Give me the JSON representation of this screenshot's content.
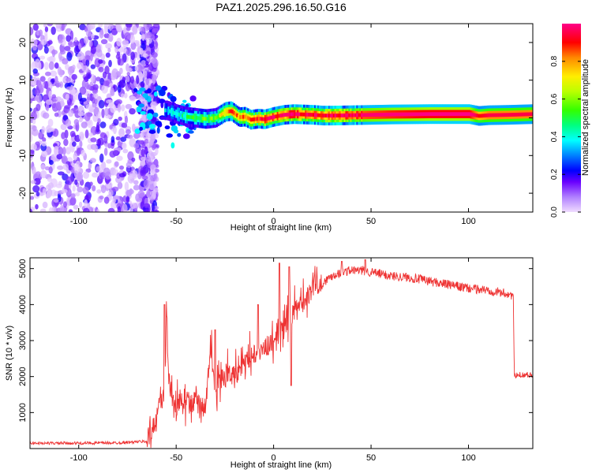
{
  "chart_data": [
    {
      "type": "heatmap",
      "title": "PAZ1.2025.296.16.50.G16",
      "xlabel": "Height of straight line (km)",
      "ylabel": "Frequency (Hz)",
      "xlim": [
        -125,
        133
      ],
      "ylim": [
        -25,
        25
      ],
      "xticks": [
        -100,
        -50,
        0,
        50,
        100
      ],
      "xtick_labels": [
        "-100",
        "-50",
        "0",
        "50",
        "100"
      ],
      "yticks": [
        -20,
        -10,
        0,
        10,
        20
      ],
      "ytick_labels": [
        "-20",
        "-10",
        "0",
        "10",
        "20"
      ],
      "colorbar": {
        "label": "Normalized spectral amplitude",
        "range": [
          0,
          1
        ],
        "ticks": [
          0.0,
          0.2,
          0.4,
          0.6,
          0.8
        ],
        "tick_labels": [
          "0.0",
          "0.2",
          "0.4",
          "0.6",
          "0.8"
        ],
        "colors": [
          "#e6ccff",
          "#9955ff",
          "#5500ff",
          "#0000ff",
          "#00a0ff",
          "#00ffff",
          "#00ff80",
          "#33ff00",
          "#bbff00",
          "#ffee00",
          "#ff8800",
          "#ff0000",
          "#ff0066",
          "#ff0088"
        ]
      },
      "ridge": {
        "x": [
          -55,
          -50,
          -45,
          -40,
          -35,
          -30,
          -25,
          -22,
          -18,
          -15,
          -12,
          -8,
          -5,
          0,
          5,
          10,
          15,
          20,
          25,
          30,
          40,
          50,
          60,
          80,
          100,
          105,
          110,
          120,
          133
        ],
        "freq": [
          2.0,
          1.0,
          0.3,
          0.0,
          -0.3,
          0.0,
          1.6,
          1.8,
          0.2,
          0.3,
          -0.5,
          -0.2,
          -0.4,
          0.3,
          0.8,
          1.0,
          0.9,
          0.8,
          0.6,
          0.6,
          0.7,
          0.8,
          0.9,
          1.0,
          1.0,
          0.5,
          0.7,
          0.8,
          1.0
        ],
        "amplitude": [
          0.35,
          0.4,
          0.45,
          0.5,
          0.55,
          0.55,
          0.75,
          0.8,
          0.75,
          0.8,
          0.8,
          0.85,
          0.9,
          0.9,
          0.9,
          0.95,
          0.9,
          0.9,
          0.9,
          0.92,
          0.92,
          0.95,
          0.97,
          1.0,
          1.0,
          0.85,
          0.9,
          0.9,
          0.9
        ]
      },
      "noise_region_x": [
        -125,
        -60
      ]
    },
    {
      "type": "line",
      "xlabel": "Height of straight line (km)",
      "ylabel": "SNR (10 * v/v)",
      "xlim": [
        -125,
        133
      ],
      "ylim": [
        0,
        5300
      ],
      "xticks": [
        -100,
        -50,
        0,
        50,
        100
      ],
      "xtick_labels": [
        "-100",
        "-50",
        "0",
        "50",
        "100"
      ],
      "yticks": [
        1000,
        2000,
        3000,
        4000,
        5000
      ],
      "ytick_labels": [
        "1000",
        "2000",
        "3000",
        "4000",
        "5000"
      ],
      "color": "#ee3333",
      "series": [
        {
          "name": "SNR",
          "x": [
            -125,
            -100,
            -80,
            -65,
            -62,
            -60,
            -58,
            -56,
            -55,
            -54,
            -52,
            -50,
            -48,
            -45,
            -40,
            -35,
            -32,
            -30,
            -28,
            -25,
            -20,
            -15,
            -10,
            -5,
            0,
            5,
            10,
            15,
            20,
            25,
            30,
            35,
            40,
            45,
            50,
            60,
            70,
            80,
            90,
            100,
            110,
            120,
            123,
            123.5,
            126,
            133
          ],
          "y": [
            150,
            150,
            160,
            200,
            400,
            900,
            1200,
            1500,
            3900,
            2000,
            1200,
            1000,
            1300,
            1100,
            1300,
            1100,
            2600,
            1300,
            1800,
            2000,
            2000,
            2300,
            2600,
            2700,
            2900,
            3300,
            3700,
            4000,
            4400,
            4600,
            4800,
            4900,
            4950,
            4950,
            4900,
            4800,
            4750,
            4650,
            4550,
            4450,
            4400,
            4300,
            4250,
            2000,
            2050,
            2050
          ]
        }
      ],
      "spikes": [
        {
          "x": -56,
          "y": 4000
        },
        {
          "x": -30,
          "y": 3300
        },
        {
          "x": -8,
          "y": 4000
        },
        {
          "x": 3,
          "y": 5150
        },
        {
          "x": 8,
          "y": 5050
        },
        {
          "x": 9,
          "y": 1750
        },
        {
          "x": 35,
          "y": 5200
        },
        {
          "x": 47,
          "y": 5250
        }
      ]
    }
  ]
}
